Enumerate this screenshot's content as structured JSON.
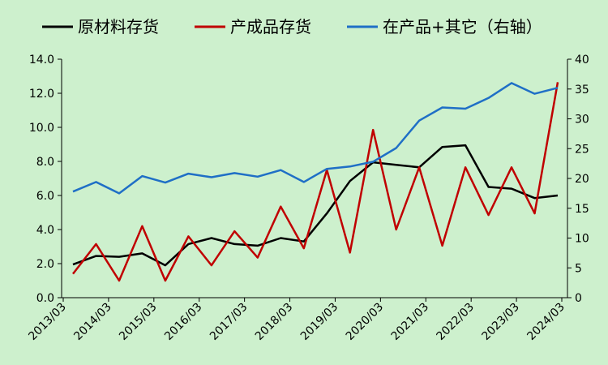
{
  "chart_data": {
    "type": "line",
    "title": "",
    "xlabel": "",
    "ylabel": "",
    "y2label": "",
    "ylim": [
      0,
      14
    ],
    "y2lim": [
      0,
      40
    ],
    "y_ticks": [
      "0.0",
      "2.0",
      "4.0",
      "6.0",
      "8.0",
      "10.0",
      "12.0",
      "14.0"
    ],
    "y2_ticks": [
      "0",
      "5",
      "10",
      "15",
      "20",
      "25",
      "30",
      "35",
      "40"
    ],
    "x_tick_labels": [
      "2013/03",
      "2014/03",
      "2015/03",
      "2016/03",
      "2017/03",
      "2018/03",
      "2019/03",
      "2020/03",
      "2021/03",
      "2022/03",
      "2023/03",
      "2024/03"
    ],
    "legend_position": "top",
    "grid": false,
    "series": [
      {
        "name": "原材料存货",
        "axis": "left",
        "color": "#000000",
        "values": [
          1.95,
          2.45,
          2.4,
          2.6,
          1.9,
          3.15,
          3.5,
          3.15,
          3.05,
          3.5,
          3.3,
          4.95,
          6.85,
          7.95,
          7.8,
          7.65,
          8.85,
          8.95,
          6.5,
          6.4,
          5.85,
          6.0
        ]
      },
      {
        "name": "产成品存货",
        "axis": "left",
        "color": "#c00000",
        "values": [
          1.4,
          3.15,
          1.0,
          4.2,
          1.0,
          3.6,
          1.9,
          3.9,
          2.35,
          5.35,
          2.9,
          7.5,
          2.65,
          9.85,
          4.0,
          7.65,
          3.05,
          7.65,
          4.85,
          7.65,
          4.95,
          12.65
        ]
      },
      {
        "name": "在产品+其它（右轴）",
        "axis": "right",
        "color": "#1f6fc6",
        "values": [
          17.8,
          19.4,
          17.5,
          20.4,
          19.3,
          20.8,
          20.2,
          20.9,
          20.3,
          21.4,
          19.4,
          21.6,
          22.0,
          22.8,
          25.1,
          29.7,
          31.9,
          31.7,
          33.5,
          36.0,
          34.2,
          35.2
        ]
      }
    ]
  }
}
